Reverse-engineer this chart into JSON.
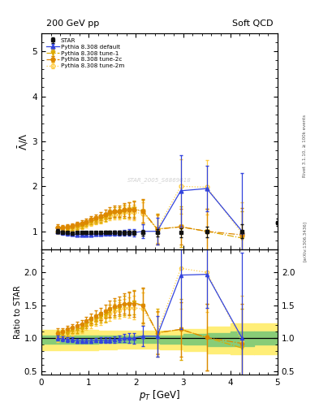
{
  "title_left": "200 GeV pp",
  "title_right": "Soft QCD",
  "ylabel_main": "$\\bar{\\Lambda}/\\Lambda$",
  "ylabel_ratio": "Ratio to STAR",
  "xlabel": "$p_T$ [GeV]",
  "right_label": "Rivet 3.1.10, ≥ 100k events",
  "arxiv_label": "[arXiv:1306.3436]",
  "watermark": "STAR_2005_S6869018",
  "star_x": [
    0.35,
    0.45,
    0.55,
    0.65,
    0.75,
    0.85,
    0.95,
    1.05,
    1.15,
    1.25,
    1.35,
    1.45,
    1.55,
    1.65,
    1.75,
    1.85,
    1.95,
    2.15,
    2.45,
    2.95,
    3.5,
    4.25,
    5.0
  ],
  "star_y": [
    1.0,
    0.98,
    0.97,
    0.96,
    0.97,
    0.97,
    0.97,
    0.97,
    0.97,
    0.97,
    0.98,
    0.98,
    0.98,
    0.97,
    0.97,
    0.97,
    0.97,
    0.97,
    0.97,
    0.97,
    0.99,
    1.0,
    1.2
  ],
  "star_yerr": [
    0.04,
    0.03,
    0.03,
    0.03,
    0.03,
    0.03,
    0.03,
    0.03,
    0.03,
    0.03,
    0.03,
    0.03,
    0.04,
    0.04,
    0.04,
    0.05,
    0.05,
    0.06,
    0.08,
    0.1,
    0.12,
    0.15,
    0.08
  ],
  "default_x": [
    0.35,
    0.45,
    0.55,
    0.65,
    0.75,
    0.85,
    0.95,
    1.05,
    1.15,
    1.25,
    1.35,
    1.45,
    1.55,
    1.65,
    1.75,
    1.85,
    1.95,
    2.15,
    2.45,
    2.95,
    3.5,
    4.25
  ],
  "default_y": [
    1.0,
    0.97,
    0.95,
    0.94,
    0.93,
    0.93,
    0.93,
    0.93,
    0.94,
    0.94,
    0.95,
    0.95,
    0.96,
    0.96,
    0.97,
    0.97,
    0.97,
    1.0,
    1.0,
    1.9,
    1.95,
    1.0
  ],
  "default_yerr": [
    0.04,
    0.04,
    0.04,
    0.04,
    0.03,
    0.03,
    0.03,
    0.03,
    0.03,
    0.04,
    0.04,
    0.04,
    0.05,
    0.05,
    0.06,
    0.07,
    0.08,
    0.15,
    0.3,
    0.8,
    0.5,
    1.3
  ],
  "tune1_x": [
    0.35,
    0.45,
    0.55,
    0.65,
    0.75,
    0.85,
    0.95,
    1.05,
    1.15,
    1.25,
    1.35,
    1.45,
    1.55,
    1.65,
    1.75,
    1.85,
    1.95,
    2.15,
    2.45,
    2.95,
    3.5,
    4.25
  ],
  "tune1_y": [
    1.05,
    1.05,
    1.05,
    1.08,
    1.1,
    1.12,
    1.18,
    1.22,
    1.25,
    1.28,
    1.32,
    1.38,
    1.42,
    1.42,
    1.45,
    1.48,
    1.5,
    1.45,
    1.05,
    1.1,
    1.0,
    0.85
  ],
  "tune1_yerr": [
    0.06,
    0.05,
    0.05,
    0.05,
    0.05,
    0.05,
    0.06,
    0.06,
    0.07,
    0.08,
    0.09,
    0.1,
    0.12,
    0.12,
    0.14,
    0.16,
    0.18,
    0.25,
    0.35,
    0.45,
    0.5,
    0.6
  ],
  "tune2c_x": [
    0.35,
    0.45,
    0.55,
    0.65,
    0.75,
    0.85,
    0.95,
    1.05,
    1.15,
    1.25,
    1.35,
    1.45,
    1.55,
    1.65,
    1.75,
    1.85,
    1.95,
    2.15,
    2.45,
    2.95,
    3.5,
    4.25
  ],
  "tune2c_y": [
    1.08,
    1.08,
    1.1,
    1.12,
    1.15,
    1.18,
    1.22,
    1.26,
    1.3,
    1.33,
    1.38,
    1.42,
    1.45,
    1.45,
    1.48,
    1.48,
    1.48,
    1.45,
    1.05,
    1.1,
    1.0,
    0.92
  ],
  "tune2c_yerr": [
    0.07,
    0.05,
    0.05,
    0.05,
    0.06,
    0.06,
    0.07,
    0.07,
    0.08,
    0.09,
    0.1,
    0.12,
    0.13,
    0.13,
    0.15,
    0.17,
    0.19,
    0.26,
    0.32,
    0.4,
    0.5,
    0.6
  ],
  "tune2m_x": [
    0.35,
    0.45,
    0.55,
    0.65,
    0.75,
    0.85,
    0.95,
    1.05,
    1.15,
    1.25,
    1.35,
    1.45,
    1.55,
    1.65,
    1.75,
    1.85,
    1.95,
    2.15,
    2.45,
    2.95,
    3.5,
    4.25
  ],
  "tune2m_y": [
    1.0,
    1.0,
    1.02,
    1.05,
    1.08,
    1.1,
    1.15,
    1.18,
    1.22,
    1.25,
    1.3,
    1.34,
    1.38,
    1.38,
    1.42,
    1.42,
    1.42,
    1.4,
    1.05,
    2.0,
    1.98,
    0.95
  ],
  "tune2m_yerr": [
    0.06,
    0.05,
    0.05,
    0.05,
    0.05,
    0.05,
    0.06,
    0.06,
    0.07,
    0.08,
    0.09,
    0.1,
    0.11,
    0.12,
    0.13,
    0.15,
    0.17,
    0.24,
    0.3,
    0.6,
    0.6,
    0.7
  ],
  "band_edges": [
    0.0,
    0.4,
    0.8,
    1.2,
    1.6,
    2.0,
    2.5,
    3.0,
    3.5,
    4.0,
    4.5,
    5.0
  ],
  "band_green_lo": [
    0.92,
    0.92,
    0.92,
    0.93,
    0.93,
    0.93,
    0.92,
    0.9,
    0.88,
    0.88,
    0.9,
    0.9
  ],
  "band_green_hi": [
    1.04,
    1.04,
    1.04,
    1.04,
    1.04,
    1.04,
    1.04,
    1.06,
    1.08,
    1.1,
    1.1,
    1.1
  ],
  "band_yellow_lo": [
    0.82,
    0.82,
    0.82,
    0.83,
    0.84,
    0.84,
    0.83,
    0.8,
    0.77,
    0.75,
    0.76,
    0.76
  ],
  "band_yellow_hi": [
    1.13,
    1.13,
    1.13,
    1.12,
    1.12,
    1.12,
    1.12,
    1.14,
    1.18,
    1.22,
    1.22,
    1.22
  ],
  "color_default": "#3344dd",
  "color_tune1": "#ddaa00",
  "color_tune2c": "#dd8800",
  "color_tune2m": "#ffcc44",
  "color_star": "#111111",
  "ylim_main": [
    0.6,
    5.4
  ],
  "ylim_ratio": [
    0.45,
    2.35
  ],
  "xlim": [
    0.0,
    5.0
  ],
  "yticks_main": [
    1,
    2,
    3,
    4,
    5
  ],
  "yticks_ratio": [
    0.5,
    1.0,
    1.5,
    2.0
  ]
}
